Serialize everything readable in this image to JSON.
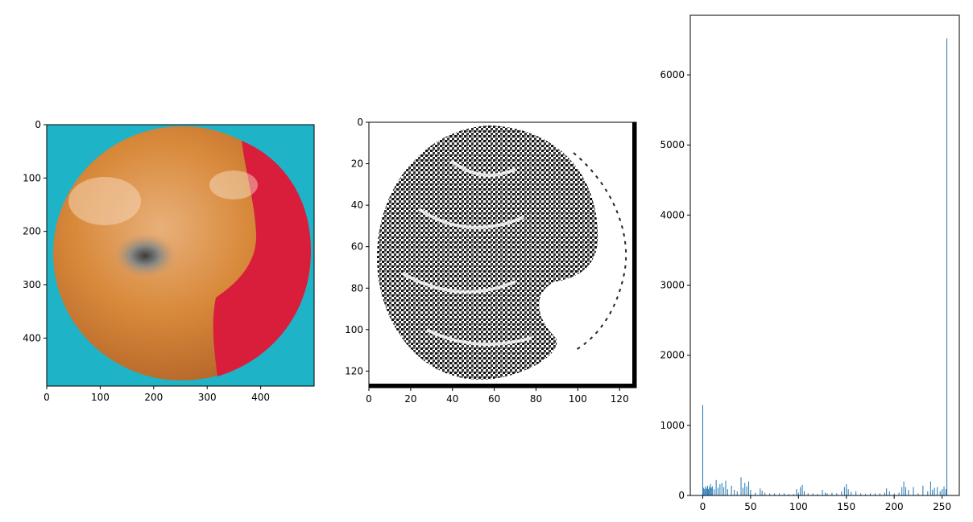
{
  "colors": {
    "axis": "#000000",
    "bar": "#1f77b4",
    "photo_background": "#1fb3c8",
    "apple_skin": "#d78a3b",
    "apple_red": "#d81e3a",
    "rot_spot": "#6f6f6f"
  },
  "chart_data": [
    {
      "type": "image",
      "content": "photograph of an apple with a rotten spot",
      "title": "",
      "xlabel": "",
      "ylabel": "",
      "xlim": [
        0,
        500
      ],
      "ylim": [
        490,
        0
      ],
      "xticks": [
        0,
        100,
        200,
        300,
        400
      ],
      "yticks": [
        0,
        100,
        200,
        300,
        400
      ],
      "grid": false
    },
    {
      "type": "image",
      "content": "binary / grayscale texture map of the apple, 128 x 128 pixels",
      "title": "",
      "xlabel": "",
      "ylabel": "",
      "xlim": [
        0,
        128
      ],
      "ylim": [
        128,
        0
      ],
      "xticks": [
        0,
        20,
        40,
        60,
        80,
        100,
        120
      ],
      "yticks": [
        0,
        20,
        40,
        60,
        80,
        100,
        120
      ],
      "grid": false
    },
    {
      "type": "bar",
      "title": "",
      "xlabel": "",
      "ylabel": "",
      "xlim": [
        -13,
        268
      ],
      "ylim": [
        0,
        6850
      ],
      "xticks": [
        0,
        50,
        100,
        150,
        200,
        250
      ],
      "yticks": [
        0,
        1000,
        2000,
        3000,
        4000,
        5000,
        6000
      ],
      "grid": false,
      "series": [
        {
          "x": [
            0,
            1,
            2,
            3,
            4,
            5,
            6,
            7,
            8,
            9,
            10,
            12,
            14,
            16,
            18,
            20,
            22,
            24,
            26,
            30,
            33,
            36,
            40,
            42,
            44,
            46,
            48,
            50,
            55,
            60,
            62,
            65,
            70,
            75,
            80,
            85,
            90,
            95,
            98,
            100,
            102,
            104,
            106,
            110,
            115,
            120,
            125,
            128,
            130,
            135,
            140,
            145,
            148,
            150,
            152,
            155,
            160,
            165,
            170,
            175,
            180,
            185,
            190,
            192,
            195,
            200,
            205,
            208,
            210,
            212,
            215,
            220,
            225,
            230,
            235,
            238,
            240,
            242,
            245,
            248,
            250,
            252,
            254,
            255
          ],
          "values": [
            1290,
            110,
            90,
            130,
            100,
            140,
            90,
            120,
            160,
            110,
            130,
            90,
            220,
            110,
            160,
            180,
            120,
            210,
            90,
            140,
            80,
            60,
            260,
            110,
            180,
            130,
            200,
            80,
            40,
            100,
            70,
            40,
            30,
            30,
            30,
            30,
            20,
            20,
            90,
            40,
            120,
            150,
            60,
            30,
            30,
            20,
            80,
            40,
            30,
            40,
            30,
            60,
            120,
            160,
            90,
            50,
            60,
            30,
            20,
            30,
            30,
            30,
            40,
            100,
            60,
            30,
            40,
            120,
            200,
            120,
            80,
            120,
            30,
            140,
            60,
            200,
            80,
            110,
            120,
            60,
            90,
            130,
            90,
            6520
          ]
        }
      ]
    }
  ]
}
